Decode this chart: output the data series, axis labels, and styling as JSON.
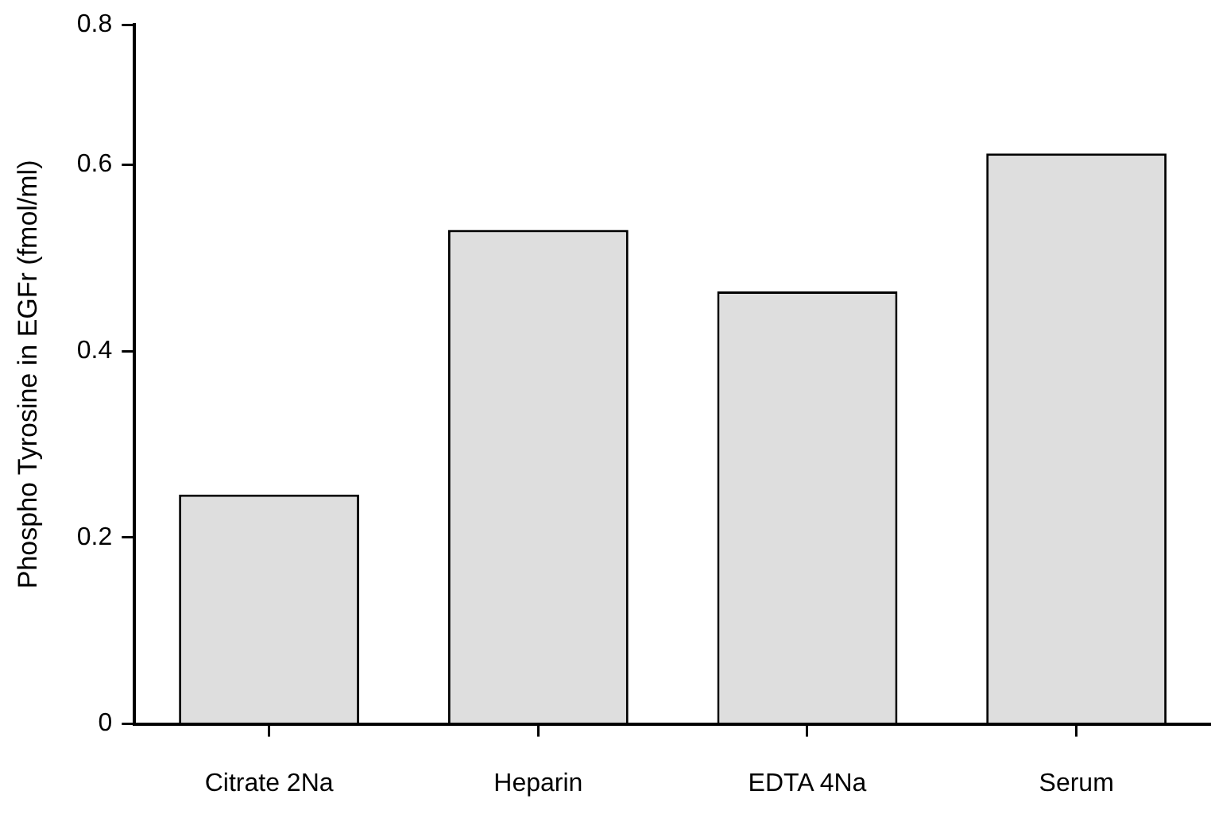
{
  "chart_data": {
    "type": "bar",
    "ylabel": "Phospho Tyrosine in EGFr (fmol/ml)",
    "categories": [
      "Citrate 2Na",
      "Heparin",
      "EDTA 4Na",
      "Serum"
    ],
    "values": [
      0.246,
      0.53,
      0.464,
      0.612
    ],
    "color": "#dedede",
    "ylim": [
      0,
      0.75
    ],
    "yticks": [
      0,
      0.2,
      0.4,
      0.6,
      {
        "value": 0.75,
        "label": "0.8"
      }
    ],
    "grid": false,
    "legend": false
  }
}
